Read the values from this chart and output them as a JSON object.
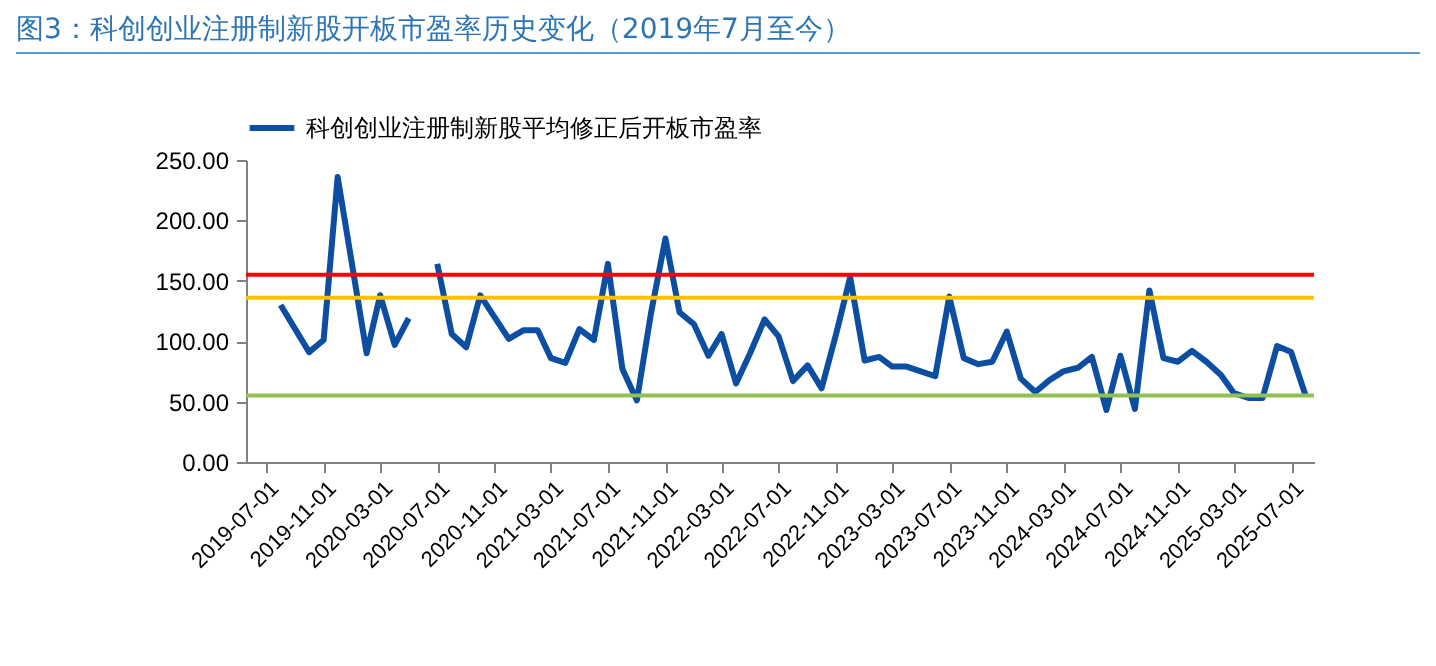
{
  "chart_data": {
    "type": "line",
    "title": "图3：科创创业注册制新股开板市盈率历史变化（2019年7月至今）",
    "series": [
      {
        "name": "科创创业注册制新股平均修正后开板市盈率",
        "color": "#0b4ea2",
        "x": [
          "2019-08",
          "2019-10",
          "2019-11",
          "2019-12",
          "2020-02",
          "2020-03",
          "2020-04",
          "2020-05",
          "2020-06",
          "2020-07",
          "2020-08",
          "2020-09",
          "2020-10",
          "2020-12",
          "2021-01",
          "2021-02",
          "2021-03",
          "2021-04",
          "2021-05",
          "2021-06",
          "2021-07",
          "2021-08",
          "2021-09",
          "2021-10",
          "2021-11",
          "2021-12",
          "2022-01",
          "2022-02",
          "2022-03",
          "2022-04",
          "2022-05",
          "2022-06",
          "2022-07",
          "2022-08",
          "2022-09",
          "2022-10",
          "2022-11",
          "2022-12",
          "2023-01",
          "2023-02",
          "2023-03",
          "2023-04",
          "2023-05",
          "2023-06",
          "2023-07",
          "2023-08",
          "2023-09",
          "2023-10",
          "2023-11",
          "2023-12",
          "2024-01",
          "2024-02",
          "2024-03",
          "2024-04",
          "2024-05",
          "2024-06",
          "2024-07",
          "2024-08",
          "2024-09",
          "2024-10",
          "2024-11",
          "2024-12",
          "2025-01",
          "2025-02",
          "2025-03",
          "2025-04",
          "2025-05",
          "2025-06",
          "2025-07",
          "2025-08"
        ],
        "values": [
          130,
          91,
          101,
          236,
          90,
          138,
          97,
          119,
          null,
          164,
          106,
          95,
          138,
          102,
          109,
          109,
          86,
          82,
          110,
          101,
          164,
          77,
          51,
          123,
          185,
          124,
          114,
          88,
          106,
          65,
          90,
          118,
          104,
          67,
          80,
          61,
          106,
          153,
          84,
          87,
          79,
          79,
          75,
          71,
          137,
          86,
          81,
          83,
          108,
          69,
          58,
          68,
          75,
          78,
          87,
          43,
          88,
          44,
          142,
          86,
          83,
          92,
          83,
          72,
          57,
          53,
          53,
          96,
          91,
          55
        ]
      }
    ],
    "xlim": [
      "2019-05-19",
      "2025-08-19"
    ],
    "xticks": [
      "2019-07-01",
      "2019-11-01",
      "2020-03-01",
      "2020-07-01",
      "2020-11-01",
      "2021-03-01",
      "2021-07-01",
      "2021-11-01",
      "2022-03-01",
      "2022-07-01",
      "2022-11-01",
      "2023-03-01",
      "2023-07-01",
      "2023-11-01",
      "2024-03-01",
      "2024-07-01",
      "2024-11-01",
      "2025-03-01",
      "2025-07-01"
    ],
    "ylim": [
      0,
      250
    ],
    "yticks": [
      {
        "value": 0,
        "label": "0.00"
      },
      {
        "value": 50,
        "label": "50.00"
      },
      {
        "value": 100,
        "label": "100.00"
      },
      {
        "value": 150,
        "label": "150.00"
      },
      {
        "value": 200,
        "label": "200.00"
      },
      {
        "value": 250,
        "label": "250.00"
      }
    ],
    "ref_lines": [
      {
        "axis": "y",
        "value": 155,
        "color": "#ff0000"
      },
      {
        "axis": "y",
        "value": 136,
        "color": "#ffc000"
      },
      {
        "axis": "y",
        "value": 55,
        "color": "#92c050"
      }
    ],
    "legend": "top",
    "grid": false,
    "line_style": "solid",
    "marker": "none"
  }
}
